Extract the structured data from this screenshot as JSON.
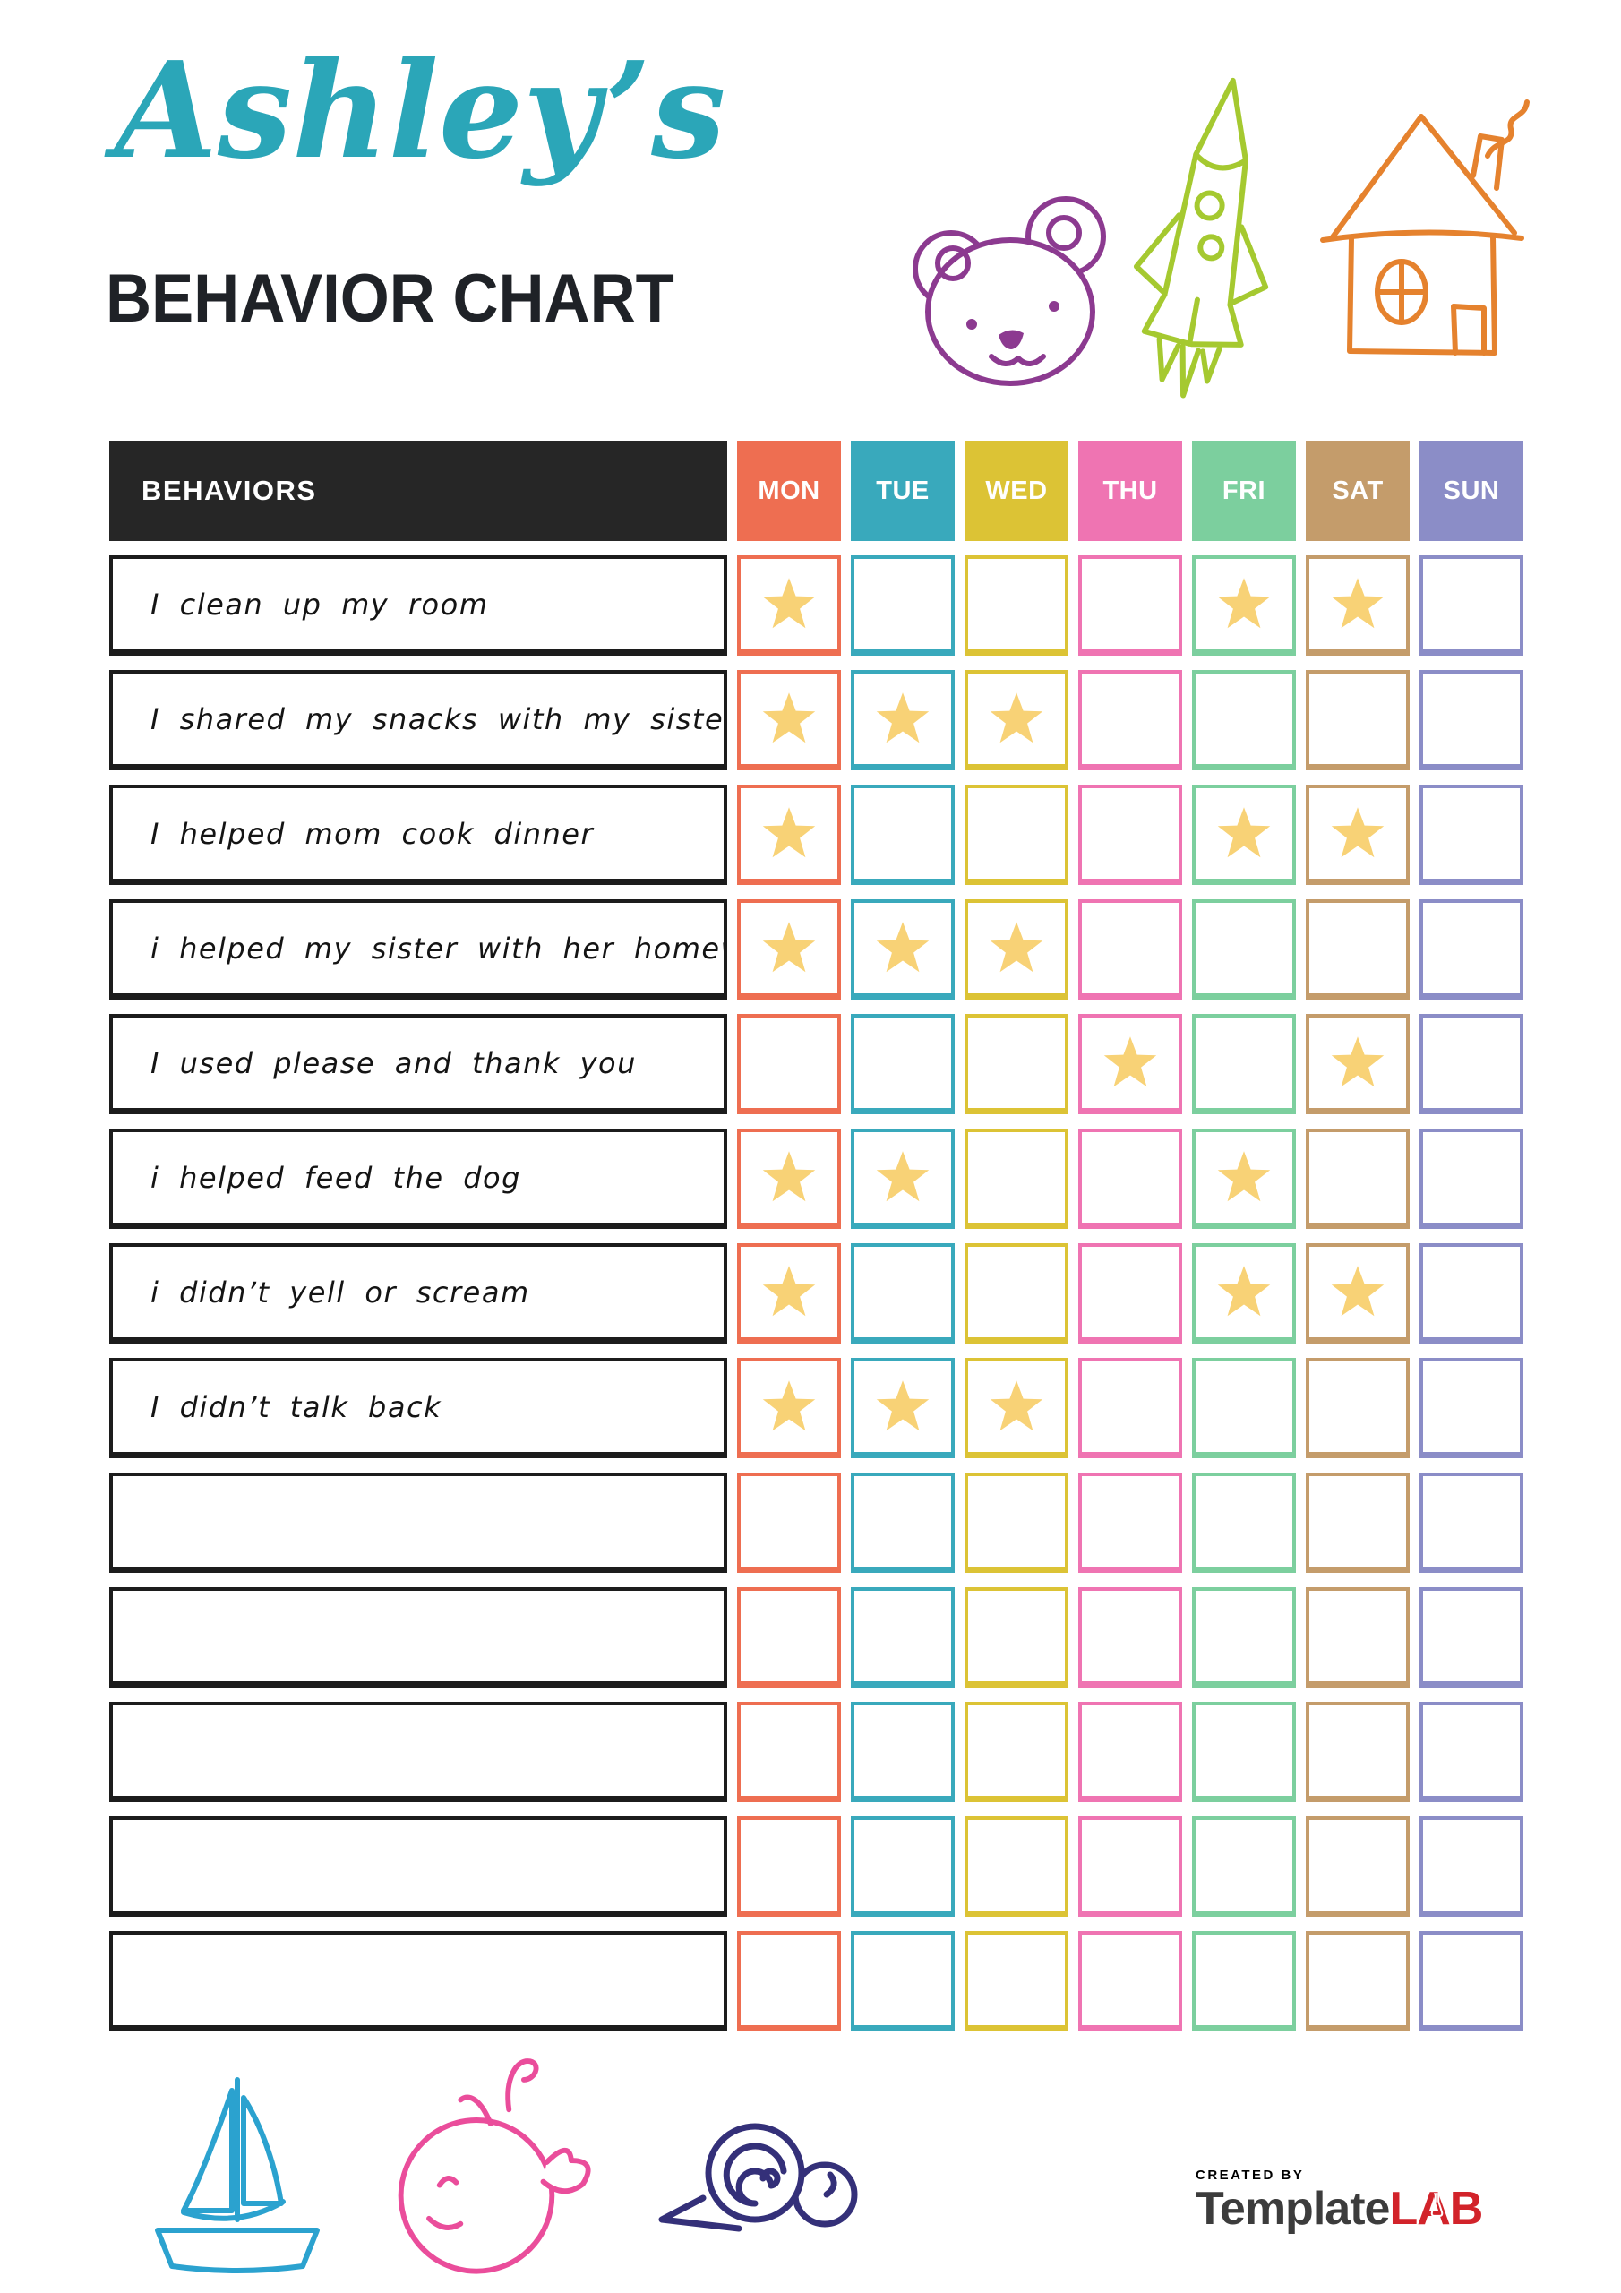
{
  "header": {
    "name_script": "Ashley’s",
    "script_color": "#2BA6B8",
    "title": "BEHAVIOR CHART",
    "title_color": "#1F2227"
  },
  "doodles": {
    "top": [
      {
        "name": "bear-icon",
        "color": "#8C3A90"
      },
      {
        "name": "rocket-icon",
        "color": "#A5C930"
      },
      {
        "name": "house-icon",
        "color": "#E5822E"
      }
    ],
    "bottom": [
      {
        "name": "sailboat-icon",
        "color": "#2BA2CF"
      },
      {
        "name": "whale-icon",
        "color": "#EA4D9B"
      },
      {
        "name": "snail-icon",
        "color": "#343079"
      }
    ]
  },
  "table": {
    "behaviors_header": "BEHAVIORS",
    "header_bg": "#262626",
    "header_text_color": "#FFFFFF",
    "row_border_color": "#1C1C1C",
    "star_color": "#F8D276",
    "days": [
      {
        "label": "MON",
        "color": "#EE6E51"
      },
      {
        "label": "TUE",
        "color": "#39A9BC"
      },
      {
        "label": "WED",
        "color": "#DCC335"
      },
      {
        "label": "THU",
        "color": "#EF74B2"
      },
      {
        "label": "FRI",
        "color": "#7CCF9E"
      },
      {
        "label": "SAT",
        "color": "#C49C6B"
      },
      {
        "label": "SUN",
        "color": "#8B8DC7"
      }
    ],
    "rows": [
      {
        "behavior": "I clean up my room",
        "stars": [
          "MON",
          "FRI",
          "SAT"
        ]
      },
      {
        "behavior": "I shared my snacks with my sister",
        "stars": [
          "MON",
          "TUE",
          "WED"
        ]
      },
      {
        "behavior": "I helped mom cook dinner",
        "stars": [
          "MON",
          "FRI",
          "SAT"
        ]
      },
      {
        "behavior": "i helped my sister with her homework",
        "stars": [
          "MON",
          "TUE",
          "WED"
        ]
      },
      {
        "behavior": "I used please and thank you",
        "stars": [
          "THU",
          "SAT"
        ]
      },
      {
        "behavior": "i helped feed the dog",
        "stars": [
          "MON",
          "TUE",
          "FRI"
        ]
      },
      {
        "behavior": "i didn’t yell or scream",
        "stars": [
          "MON",
          "FRI",
          "SAT"
        ]
      },
      {
        "behavior": "I didn’t talk back",
        "stars": [
          "MON",
          "TUE",
          "WED"
        ]
      },
      {
        "behavior": "",
        "stars": []
      },
      {
        "behavior": "",
        "stars": []
      },
      {
        "behavior": "",
        "stars": []
      },
      {
        "behavior": "",
        "stars": []
      },
      {
        "behavior": "",
        "stars": []
      }
    ]
  },
  "footer": {
    "created_by": "CREATED BY",
    "brand_dark": "Template",
    "brand_red": "LAB",
    "brand_dark_color": "#3C3C3C",
    "brand_red_color": "#D2232A"
  }
}
